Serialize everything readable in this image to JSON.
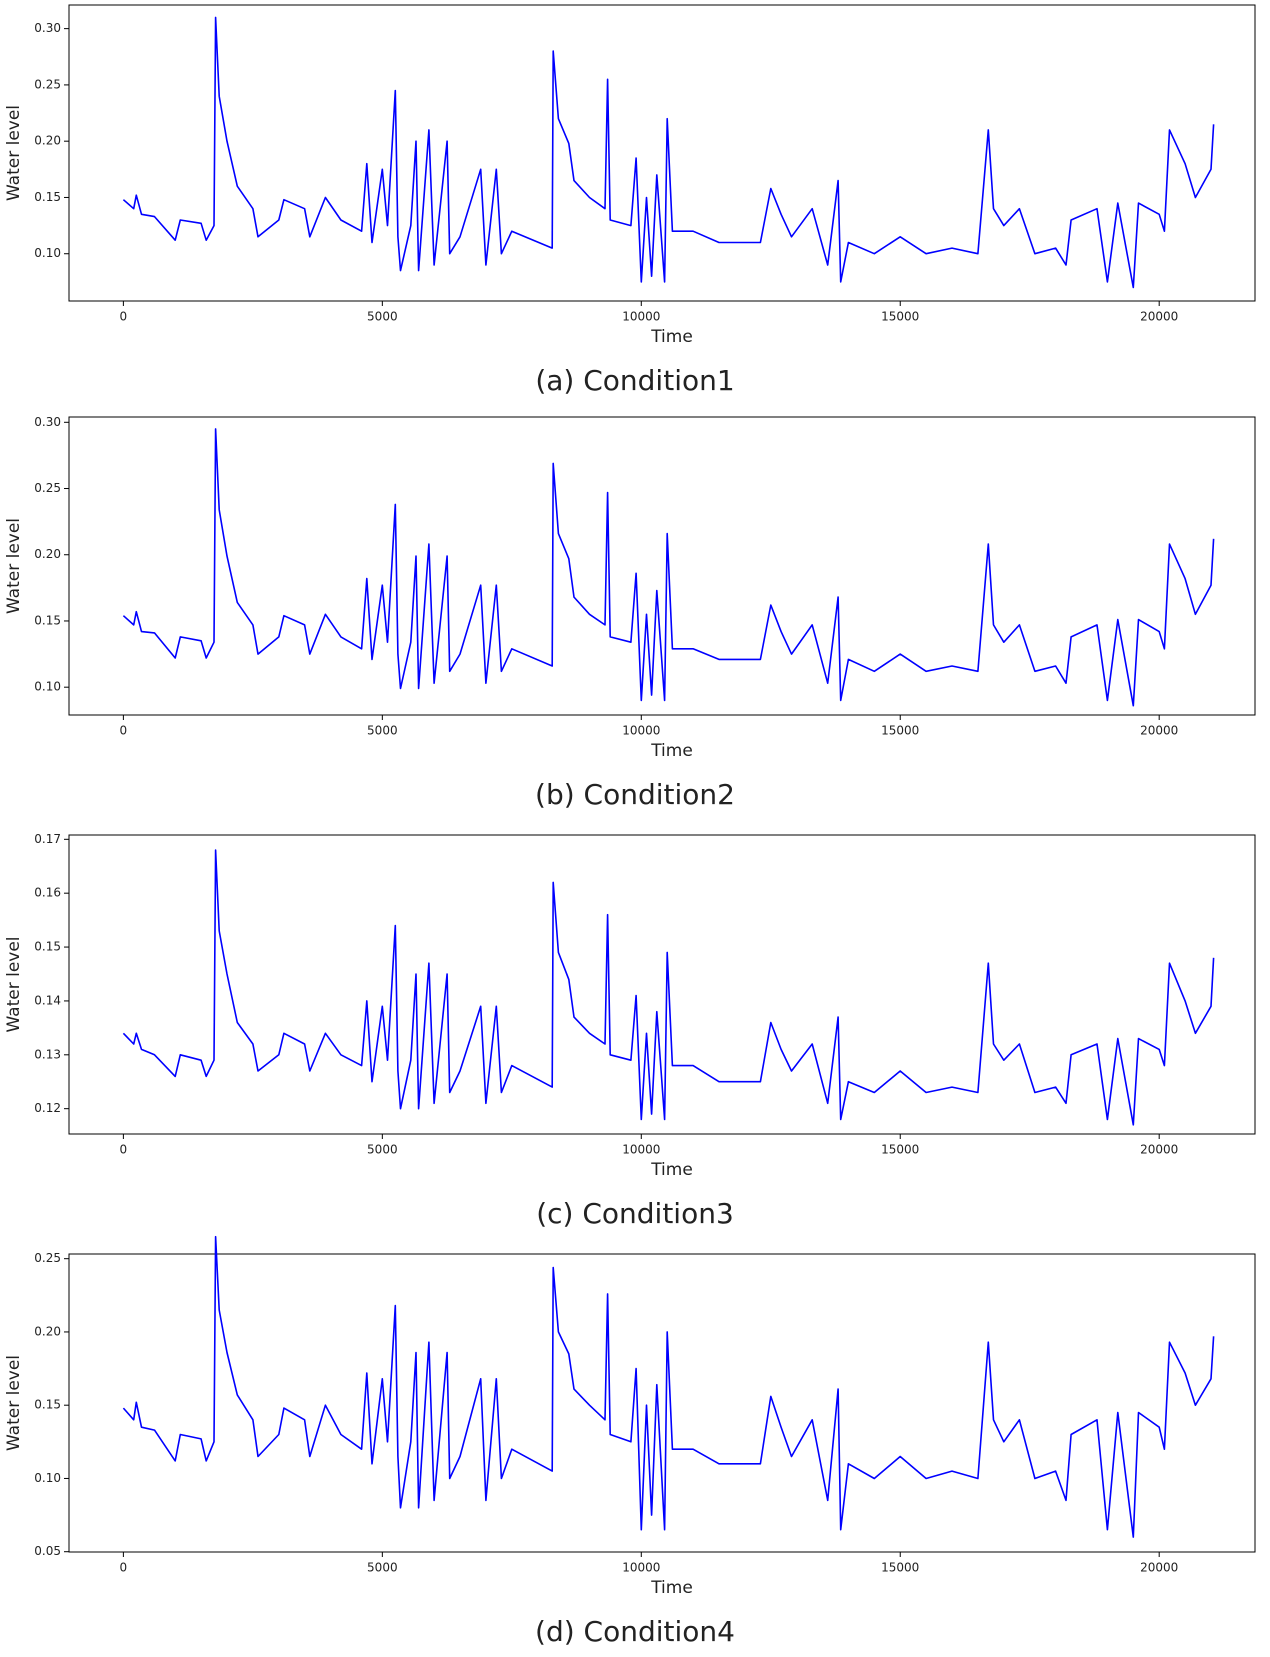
{
  "chart_data": [
    {
      "type": "line",
      "caption": "(a) Condition1",
      "x_label": "Time",
      "y_label": "Water level",
      "color": "#0000ff",
      "xlim": [
        -1050,
        21850
      ],
      "xticks": [
        0,
        5000,
        10000,
        15000,
        20000
      ],
      "ylim": [
        0.058,
        0.321
      ],
      "yticks": [
        {
          "value": 0.1,
          "label": "0.10"
        },
        0.15,
        {
          "value": 0.2,
          "label": "0.20"
        },
        0.25,
        {
          "value": 0.3,
          "label": "0.30"
        }
      ],
      "x": [
        0,
        200,
        250,
        350,
        600,
        1000,
        1100,
        1500,
        1600,
        1750,
        1780,
        1850,
        2000,
        2200,
        2500,
        2600,
        3000,
        3100,
        3500,
        3600,
        3900,
        4200,
        4600,
        4700,
        4800,
        5000,
        5100,
        5250,
        5300,
        5350,
        5550,
        5650,
        5700,
        5900,
        6000,
        6250,
        6300,
        6500,
        6900,
        7000,
        7200,
        7300,
        7500,
        8280,
        8300,
        8400,
        8600,
        8700,
        9000,
        9300,
        9350,
        9400,
        9800,
        9900,
        10000,
        10100,
        10200,
        10300,
        10450,
        10500,
        10600,
        11000,
        11500,
        12300,
        12500,
        12700,
        12900,
        13300,
        13600,
        13800,
        13850,
        14000,
        14500,
        15000,
        15500,
        16000,
        16500,
        16700,
        16800,
        17000,
        17300,
        17600,
        18000,
        18200,
        18300,
        18800,
        19000,
        19200,
        19500,
        19600,
        20000,
        20100,
        20200,
        20500,
        20700,
        21000,
        21050
      ],
      "values": [
        0.148,
        0.14,
        0.152,
        0.135,
        0.133,
        0.112,
        0.13,
        0.127,
        0.112,
        0.125,
        0.31,
        0.24,
        0.2,
        0.16,
        0.14,
        0.115,
        0.13,
        0.148,
        0.14,
        0.115,
        0.15,
        0.13,
        0.12,
        0.18,
        0.11,
        0.175,
        0.125,
        0.245,
        0.115,
        0.085,
        0.125,
        0.2,
        0.085,
        0.21,
        0.09,
        0.2,
        0.1,
        0.115,
        0.175,
        0.09,
        0.175,
        0.1,
        0.12,
        0.105,
        0.28,
        0.22,
        0.198,
        0.165,
        0.15,
        0.14,
        0.255,
        0.13,
        0.125,
        0.185,
        0.075,
        0.15,
        0.08,
        0.17,
        0.075,
        0.22,
        0.12,
        0.12,
        0.11,
        0.11,
        0.158,
        0.135,
        0.115,
        0.14,
        0.09,
        0.165,
        0.075,
        0.11,
        0.1,
        0.115,
        0.1,
        0.105,
        0.1,
        0.21,
        0.14,
        0.125,
        0.14,
        0.1,
        0.105,
        0.09,
        0.13,
        0.14,
        0.075,
        0.145,
        0.07,
        0.145,
        0.135,
        0.12,
        0.21,
        0.18,
        0.15,
        0.175,
        0.215
      ]
    },
    {
      "type": "line",
      "caption": "(b) Condition2",
      "x_label": "Time",
      "y_label": "Water level",
      "color": "#0000ff",
      "xlim": [
        -1050,
        21850
      ],
      "xticks": [
        0,
        5000,
        10000,
        15000,
        20000
      ],
      "ylim": [
        0.079,
        0.304
      ],
      "yticks": [
        {
          "value": 0.1,
          "label": "0.10"
        },
        0.15,
        {
          "value": 0.2,
          "label": "0.20"
        },
        0.25,
        {
          "value": 0.3,
          "label": "0.30"
        }
      ],
      "x": [
        0,
        200,
        250,
        350,
        600,
        1000,
        1100,
        1500,
        1600,
        1750,
        1780,
        1850,
        2000,
        2200,
        2500,
        2600,
        3000,
        3100,
        3500,
        3600,
        3900,
        4200,
        4600,
        4700,
        4800,
        5000,
        5100,
        5250,
        5300,
        5350,
        5550,
        5650,
        5700,
        5900,
        6000,
        6250,
        6300,
        6500,
        6900,
        7000,
        7200,
        7300,
        7500,
        8280,
        8300,
        8400,
        8600,
        8700,
        9000,
        9300,
        9350,
        9400,
        9800,
        9900,
        10000,
        10100,
        10200,
        10300,
        10450,
        10500,
        10600,
        11000,
        11500,
        12300,
        12500,
        12700,
        12900,
        13300,
        13600,
        13800,
        13850,
        14000,
        14500,
        15000,
        15500,
        16000,
        16500,
        16700,
        16800,
        17000,
        17300,
        17600,
        18000,
        18200,
        18300,
        18800,
        19000,
        19200,
        19500,
        19600,
        20000,
        20100,
        20200,
        20500,
        20700,
        21000,
        21050
      ],
      "values": [
        0.154,
        0.147,
        0.157,
        0.142,
        0.141,
        0.122,
        0.138,
        0.135,
        0.122,
        0.134,
        0.295,
        0.234,
        0.199,
        0.164,
        0.147,
        0.125,
        0.138,
        0.154,
        0.147,
        0.125,
        0.155,
        0.138,
        0.129,
        0.182,
        0.121,
        0.177,
        0.134,
        0.238,
        0.125,
        0.099,
        0.134,
        0.199,
        0.099,
        0.208,
        0.103,
        0.199,
        0.112,
        0.125,
        0.177,
        0.103,
        0.177,
        0.112,
        0.129,
        0.116,
        0.269,
        0.216,
        0.197,
        0.168,
        0.155,
        0.147,
        0.247,
        0.138,
        0.134,
        0.186,
        0.09,
        0.155,
        0.094,
        0.173,
        0.09,
        0.216,
        0.129,
        0.129,
        0.121,
        0.121,
        0.162,
        0.142,
        0.125,
        0.147,
        0.103,
        0.168,
        0.09,
        0.121,
        0.112,
        0.125,
        0.112,
        0.116,
        0.112,
        0.208,
        0.147,
        0.134,
        0.147,
        0.112,
        0.116,
        0.103,
        0.138,
        0.147,
        0.09,
        0.151,
        0.086,
        0.151,
        0.142,
        0.129,
        0.208,
        0.182,
        0.155,
        0.177,
        0.212
      ]
    },
    {
      "type": "line",
      "caption": "(c) Condition3",
      "x_label": "Time",
      "y_label": "Water level",
      "color": "#0000ff",
      "xlim": [
        -1050,
        21850
      ],
      "xticks": [
        0,
        5000,
        10000,
        15000,
        20000
      ],
      "ylim": [
        0.1153,
        0.1708
      ],
      "yticks": [
        0.12,
        0.13,
        0.14,
        0.15,
        0.16,
        0.17
      ],
      "x": [
        0,
        200,
        250,
        350,
        600,
        1000,
        1100,
        1500,
        1600,
        1750,
        1780,
        1850,
        2000,
        2200,
        2500,
        2600,
        3000,
        3100,
        3500,
        3600,
        3900,
        4200,
        4600,
        4700,
        4800,
        5000,
        5100,
        5250,
        5300,
        5350,
        5550,
        5650,
        5700,
        5900,
        6000,
        6250,
        6300,
        6500,
        6900,
        7000,
        7200,
        7300,
        7500,
        8280,
        8300,
        8400,
        8600,
        8700,
        9000,
        9300,
        9350,
        9400,
        9800,
        9900,
        10000,
        10100,
        10200,
        10300,
        10450,
        10500,
        10600,
        11000,
        11500,
        12300,
        12500,
        12700,
        12900,
        13300,
        13600,
        13800,
        13850,
        14000,
        14500,
        15000,
        15500,
        16000,
        16500,
        16700,
        16800,
        17000,
        17300,
        17600,
        18000,
        18200,
        18300,
        18800,
        19000,
        19200,
        19500,
        19600,
        20000,
        20100,
        20200,
        20500,
        20700,
        21000,
        21050
      ],
      "values": [
        0.134,
        0.132,
        0.134,
        0.131,
        0.13,
        0.126,
        0.13,
        0.129,
        0.126,
        0.129,
        0.168,
        0.153,
        0.145,
        0.136,
        0.132,
        0.127,
        0.13,
        0.134,
        0.132,
        0.127,
        0.134,
        0.13,
        0.128,
        0.14,
        0.125,
        0.139,
        0.129,
        0.154,
        0.127,
        0.12,
        0.129,
        0.145,
        0.12,
        0.147,
        0.121,
        0.145,
        0.123,
        0.127,
        0.139,
        0.121,
        0.139,
        0.123,
        0.128,
        0.124,
        0.162,
        0.149,
        0.144,
        0.137,
        0.134,
        0.132,
        0.156,
        0.13,
        0.129,
        0.141,
        0.118,
        0.134,
        0.119,
        0.138,
        0.118,
        0.149,
        0.128,
        0.128,
        0.125,
        0.125,
        0.136,
        0.131,
        0.127,
        0.132,
        0.121,
        0.137,
        0.118,
        0.125,
        0.123,
        0.127,
        0.123,
        0.124,
        0.123,
        0.147,
        0.132,
        0.129,
        0.132,
        0.123,
        0.124,
        0.121,
        0.13,
        0.132,
        0.118,
        0.133,
        0.117,
        0.133,
        0.131,
        0.128,
        0.147,
        0.14,
        0.134,
        0.139,
        0.148
      ]
    },
    {
      "type": "line",
      "caption": "(d) Condition4",
      "x_label": "Time",
      "y_label": "Water level",
      "color": "#0000ff",
      "xlim": [
        -1050,
        21850
      ],
      "xticks": [
        0,
        5000,
        10000,
        15000,
        20000
      ],
      "ylim": [
        0.0498,
        0.2532
      ],
      "yticks": [
        0.05,
        {
          "value": 0.1,
          "label": "0.10"
        },
        0.15,
        {
          "value": 0.2,
          "label": "0.20"
        },
        0.25
      ],
      "x": [
        0,
        200,
        250,
        350,
        600,
        1000,
        1100,
        1500,
        1600,
        1750,
        1780,
        1850,
        2000,
        2200,
        2500,
        2600,
        3000,
        3100,
        3500,
        3600,
        3900,
        4200,
        4600,
        4700,
        4800,
        5000,
        5100,
        5250,
        5300,
        5350,
        5550,
        5650,
        5700,
        5900,
        6000,
        6250,
        6300,
        6500,
        6900,
        7000,
        7200,
        7300,
        7500,
        8280,
        8300,
        8400,
        8600,
        8700,
        9000,
        9300,
        9350,
        9400,
        9800,
        9900,
        10000,
        10100,
        10200,
        10300,
        10450,
        10500,
        10600,
        11000,
        11500,
        12300,
        12500,
        12700,
        12900,
        13300,
        13600,
        13800,
        13850,
        14000,
        14500,
        15000,
        15500,
        16000,
        16500,
        16700,
        16800,
        17000,
        17300,
        17600,
        18000,
        18200,
        18300,
        18800,
        19000,
        19200,
        19500,
        19600,
        20000,
        20100,
        20200,
        20500,
        20700,
        21000,
        21050
      ],
      "values": [
        0.148,
        0.14,
        0.152,
        0.135,
        0.133,
        0.112,
        0.13,
        0.127,
        0.112,
        0.125,
        0.265,
        0.215,
        0.186,
        0.157,
        0.14,
        0.115,
        0.13,
        0.148,
        0.14,
        0.115,
        0.15,
        0.13,
        0.12,
        0.172,
        0.11,
        0.168,
        0.125,
        0.218,
        0.115,
        0.08,
        0.125,
        0.186,
        0.08,
        0.193,
        0.085,
        0.186,
        0.1,
        0.115,
        0.168,
        0.085,
        0.168,
        0.1,
        0.12,
        0.105,
        0.244,
        0.2,
        0.185,
        0.161,
        0.15,
        0.14,
        0.226,
        0.13,
        0.125,
        0.175,
        0.065,
        0.15,
        0.075,
        0.164,
        0.065,
        0.2,
        0.12,
        0.12,
        0.11,
        0.11,
        0.156,
        0.135,
        0.115,
        0.14,
        0.085,
        0.161,
        0.065,
        0.11,
        0.1,
        0.115,
        0.1,
        0.105,
        0.1,
        0.193,
        0.14,
        0.125,
        0.14,
        0.1,
        0.105,
        0.085,
        0.13,
        0.14,
        0.065,
        0.145,
        0.06,
        0.145,
        0.135,
        0.12,
        0.193,
        0.172,
        0.15,
        0.168,
        0.197
      ]
    }
  ]
}
